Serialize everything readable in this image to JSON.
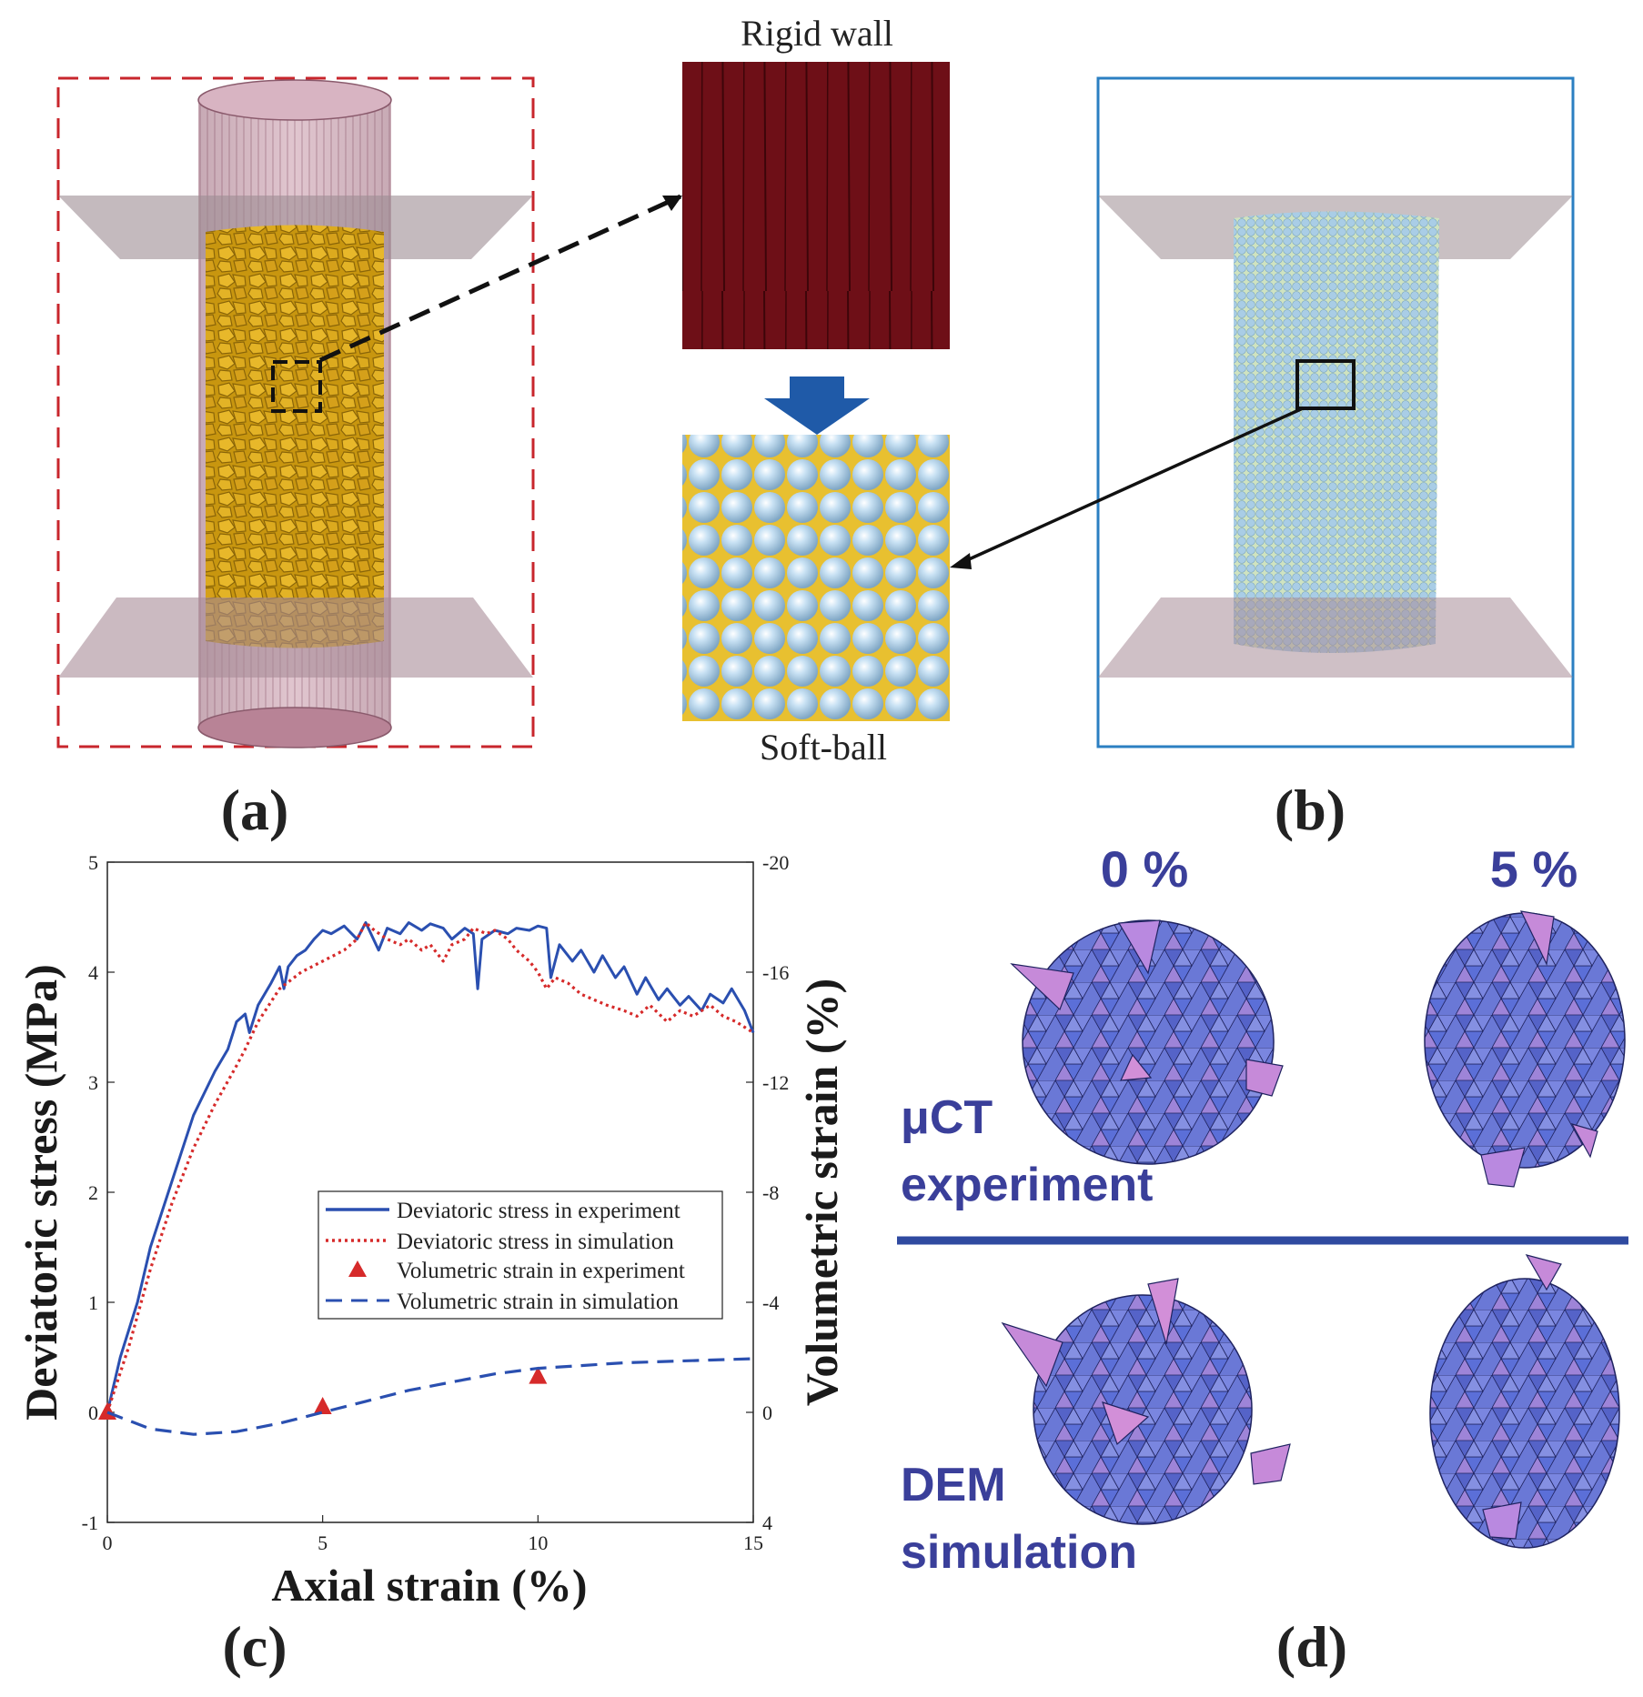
{
  "panels": {
    "a_label": "(a)",
    "b_label": "(b)",
    "c_label": "(c)",
    "d_label": "(d)"
  },
  "panel_a": {
    "rigid_wall_caption": "Rigid wall",
    "soft_ball_caption": "Soft-ball",
    "colors": {
      "frame": "#c8262c",
      "particles": "#d4a418",
      "membrane": "#b07a8c",
      "wall": "#6e0f17",
      "arrow": "#1f5aa8"
    }
  },
  "panel_b": {
    "colors": {
      "frame": "#2b7fc2",
      "balls": "#a9cde6"
    }
  },
  "panel_d": {
    "pct_0": "0 %",
    "pct_5": "5 %",
    "row1_line1": "μCT",
    "row1_line2": "experiment",
    "row2_line1": "DEM",
    "row2_line2": "simulation",
    "colors": {
      "text": "#3a3f9a",
      "divider": "#2f4aa0",
      "blue": "#5b6fd8",
      "pink": "#c68ad9"
    }
  },
  "chart_data": {
    "type": "line",
    "xlabel": "Axial strain (%)",
    "ylabel": "Deviatoric stress (MPa)",
    "y2label": "Volumetric strain (%)",
    "xlim": [
      0,
      15
    ],
    "ylim": [
      -1,
      5
    ],
    "y2lim": [
      4,
      -20
    ],
    "x_ticks": [
      "0",
      "5",
      "10",
      "15"
    ],
    "y_ticks": [
      "-1",
      "0",
      "1",
      "2",
      "3",
      "4",
      "5"
    ],
    "y2_ticks": [
      "4",
      "0",
      "-4",
      "-8",
      "-12",
      "-16",
      "-20"
    ],
    "legend_position": "center-right",
    "series": [
      {
        "name": "Deviatoric stress in experiment",
        "axis": "left",
        "style": "solid",
        "color": "#2a4fb0",
        "x": [
          0,
          0.3,
          0.7,
          1.0,
          1.5,
          2.0,
          2.5,
          2.8,
          3.0,
          3.2,
          3.3,
          3.5,
          3.8,
          4.0,
          4.1,
          4.2,
          4.4,
          4.6,
          4.8,
          5.0,
          5.2,
          5.5,
          5.8,
          6.0,
          6.3,
          6.5,
          6.8,
          7.0,
          7.3,
          7.5,
          7.8,
          8.0,
          8.3,
          8.5,
          8.6,
          8.7,
          9.0,
          9.3,
          9.5,
          9.8,
          10.0,
          10.2,
          10.3,
          10.5,
          10.8,
          11.0,
          11.3,
          11.5,
          11.8,
          12.0,
          12.3,
          12.5,
          12.8,
          13.0,
          13.3,
          13.5,
          13.8,
          14.0,
          14.3,
          14.5,
          14.8,
          15.0
        ],
        "y": [
          0,
          0.5,
          1.0,
          1.5,
          2.1,
          2.7,
          3.1,
          3.3,
          3.55,
          3.62,
          3.45,
          3.7,
          3.9,
          4.05,
          3.85,
          4.05,
          4.15,
          4.2,
          4.3,
          4.38,
          4.35,
          4.42,
          4.3,
          4.45,
          4.2,
          4.4,
          4.35,
          4.45,
          4.38,
          4.44,
          4.4,
          4.3,
          4.4,
          4.35,
          3.85,
          4.3,
          4.38,
          4.35,
          4.4,
          4.38,
          4.42,
          4.4,
          3.95,
          4.25,
          4.1,
          4.2,
          4.0,
          4.15,
          3.95,
          4.05,
          3.8,
          3.95,
          3.75,
          3.85,
          3.7,
          3.78,
          3.65,
          3.8,
          3.72,
          3.85,
          3.65,
          3.45
        ]
      },
      {
        "name": "Deviatoric stress in simulation",
        "axis": "left",
        "style": "dotted",
        "color": "#d62a2a",
        "x": [
          0,
          0.5,
          1.0,
          1.5,
          2.0,
          2.5,
          3.0,
          3.2,
          3.5,
          4.0,
          4.5,
          5.0,
          5.5,
          5.8,
          6.0,
          6.2,
          6.5,
          6.8,
          7.0,
          7.3,
          7.5,
          7.8,
          8.0,
          8.3,
          8.5,
          8.8,
          9.0,
          9.3,
          9.5,
          9.8,
          10.0,
          10.2,
          10.4,
          10.7,
          11.0,
          11.3,
          11.6,
          12.0,
          12.3,
          12.6,
          13.0,
          13.3,
          13.6,
          14.0,
          14.3,
          14.6,
          15.0
        ],
        "y": [
          0,
          0.6,
          1.3,
          1.9,
          2.4,
          2.8,
          3.15,
          3.3,
          3.55,
          3.85,
          4.0,
          4.1,
          4.2,
          4.3,
          4.45,
          4.38,
          4.3,
          4.25,
          4.3,
          4.2,
          4.25,
          4.1,
          4.25,
          4.3,
          4.4,
          4.35,
          4.38,
          4.3,
          4.2,
          4.1,
          4.0,
          3.85,
          3.95,
          3.9,
          3.8,
          3.75,
          3.7,
          3.65,
          3.6,
          3.7,
          3.55,
          3.65,
          3.6,
          3.7,
          3.6,
          3.55,
          3.45
        ]
      },
      {
        "name": "Volumetric strain in experiment",
        "axis": "right",
        "style": "markers",
        "color": "#d62a2a",
        "x": [
          0,
          5,
          10
        ],
        "y": [
          0,
          -0.2,
          -1.3
        ]
      },
      {
        "name": "Volumetric strain in simulation",
        "axis": "right",
        "style": "dashed",
        "color": "#2a4fb0",
        "x": [
          0,
          1,
          2,
          3,
          4,
          5,
          6,
          7,
          8,
          9,
          10,
          11,
          12,
          13,
          14,
          15
        ],
        "y": [
          0,
          0.6,
          0.8,
          0.7,
          0.4,
          0,
          -0.4,
          -0.8,
          -1.1,
          -1.4,
          -1.6,
          -1.7,
          -1.8,
          -1.85,
          -1.9,
          -1.95
        ]
      }
    ]
  }
}
